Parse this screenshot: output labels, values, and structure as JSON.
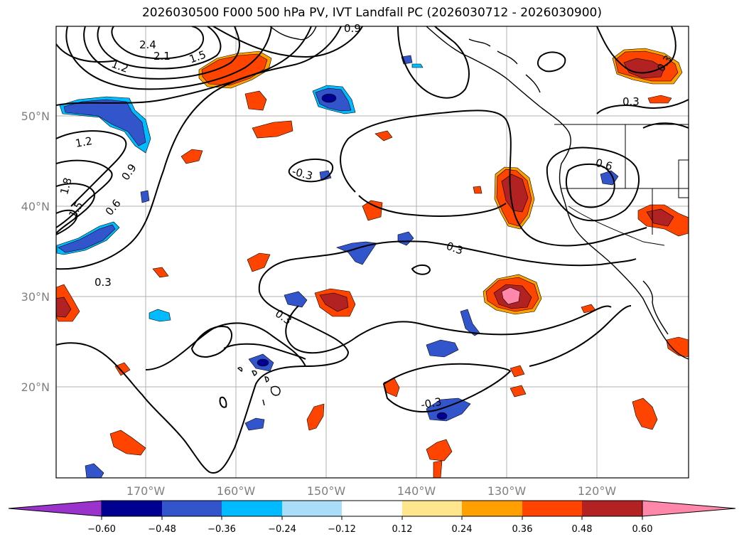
{
  "title": "2026030500 F000 500 hPa PV, IVT Landfall PC (2026030712 - 2026030900)",
  "map": {
    "lat_labels": [
      "50°N",
      "40°N",
      "30°N",
      "20°N"
    ],
    "lon_labels": [
      "170°W",
      "160°W",
      "150°W",
      "140°W",
      "130°W",
      "120°W"
    ],
    "contour_labels": [
      "0.9",
      "2.4",
      "2.1",
      "1.5",
      "1.2",
      "1.2",
      "1.8",
      "1.5",
      "0.9",
      "0.6",
      "0.3",
      "-0.3",
      "0.3",
      "0.6",
      "0.3",
      "0.3",
      "0.3",
      "-0.3"
    ]
  },
  "colorbar": {
    "ticks": [
      "−0.60",
      "−0.48",
      "−0.36",
      "−0.24",
      "−0.12",
      "0.12",
      "0.24",
      "0.36",
      "0.48",
      "0.60"
    ],
    "colors": {
      "under": "#9933cc",
      "bins": [
        "#000090",
        "#3355cc",
        "#00bbff",
        "#aaddf8",
        "#ffffff",
        "#ffe58c",
        "#ffa000",
        "#ff4400",
        "#b22222"
      ],
      "over": "#ff88aa"
    }
  }
}
